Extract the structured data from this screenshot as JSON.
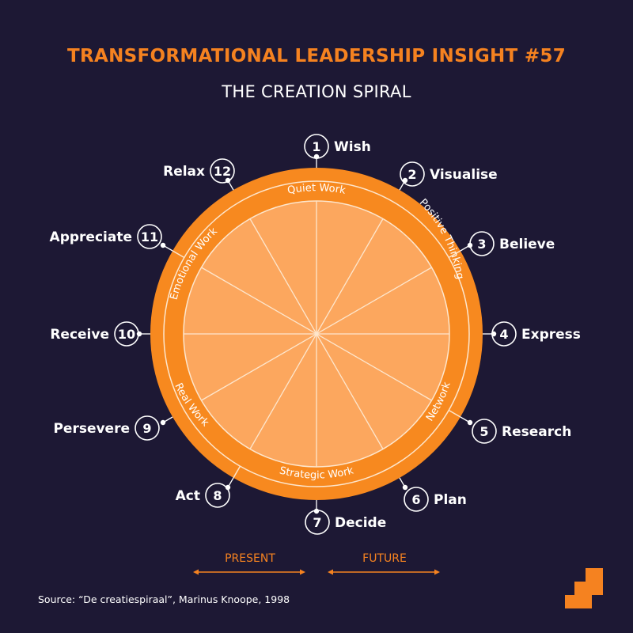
{
  "header": {
    "title": "TRANSFORMATIONAL LEADERSHIP INSIGHT #57",
    "subtitle": "THE CREATION SPIRAL"
  },
  "steps": [
    {
      "number": "1",
      "label": "Wish"
    },
    {
      "number": "2",
      "label": "Visualise"
    },
    {
      "number": "3",
      "label": "Believe"
    },
    {
      "number": "4",
      "label": "Express"
    },
    {
      "number": "5",
      "label": "Research"
    },
    {
      "number": "6",
      "label": "Plan"
    },
    {
      "number": "7",
      "label": "Decide"
    },
    {
      "number": "8",
      "label": "Act"
    },
    {
      "number": "9",
      "label": "Persevere"
    },
    {
      "number": "10",
      "label": "Receive"
    },
    {
      "number": "11",
      "label": "Appreciate"
    },
    {
      "number": "12",
      "label": "Relax"
    }
  ],
  "segments": [
    {
      "label": "Quiet Work"
    },
    {
      "label": "Positive Thinking"
    },
    {
      "label": "Network"
    },
    {
      "label": "Strategic Work"
    },
    {
      "label": "Real Work"
    },
    {
      "label": "Emotional Work"
    }
  ],
  "timeline": {
    "present": "PRESENT",
    "future": "FUTURE"
  },
  "source": "Source: “De creatiespiraal”, Marinus Knoope, 1998",
  "colors": {
    "background": "#1d1834",
    "accent": "#f58220",
    "ring": "#f7891f",
    "inner": "#fca75e",
    "line": "#fde6cd",
    "text": "#ffffff"
  }
}
